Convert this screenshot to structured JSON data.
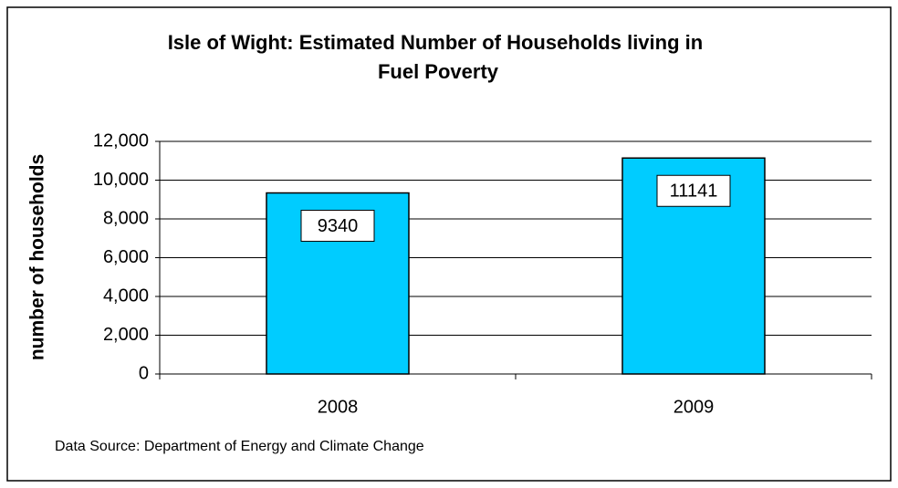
{
  "chart_data": {
    "type": "bar",
    "title": "Isle of Wight: Estimated Number of Households living in Fuel Poverty",
    "y_label": "number of households",
    "source": "Data Source: Department of Energy and Climate Change",
    "categories": [
      "2008",
      "2009"
    ],
    "values": [
      9340,
      11141
    ],
    "color": "#00ccff",
    "ylim": [
      0,
      12000
    ],
    "yticks": [
      0,
      {
        "value": 2000,
        "label": "2,000"
      },
      {
        "value": 4000,
        "label": "4,000"
      },
      {
        "value": 6000,
        "label": "6,000"
      },
      {
        "value": 8000,
        "label": "8,000"
      },
      {
        "value": 10000,
        "label": "10,000"
      },
      {
        "value": 12000,
        "label": "12,000"
      }
    ],
    "grid": true
  }
}
